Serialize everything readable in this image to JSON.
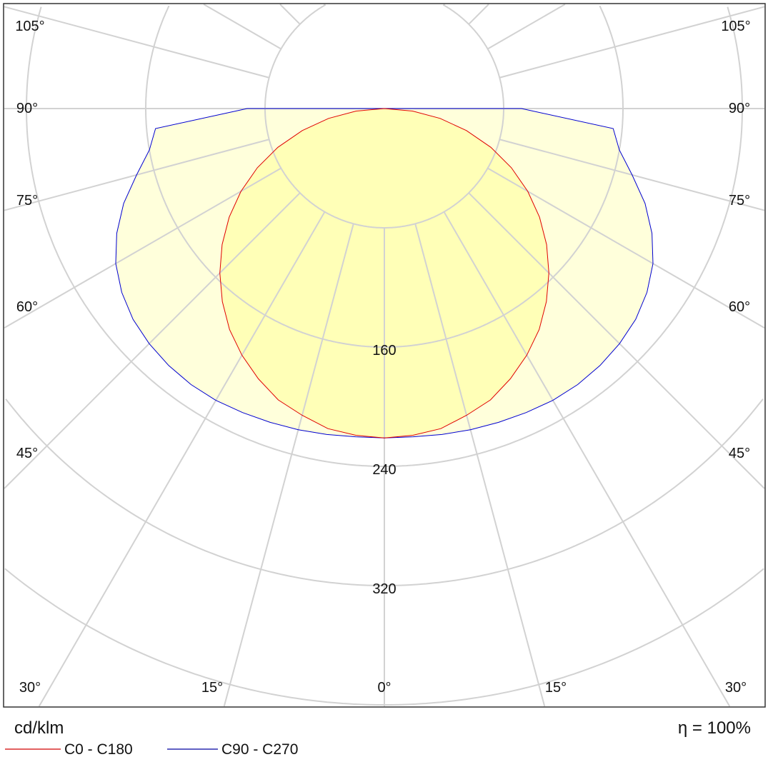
{
  "chart_data": {
    "type": "polar",
    "unit_label": "cd/klm",
    "efficiency_label": "η = 100%",
    "radial_ticks": [
      80,
      160,
      240,
      320,
      400,
      480,
      560,
      640
    ],
    "radial_tick_labels": [
      "160",
      "240",
      "320"
    ],
    "angle_labels": [
      "0°",
      "15°",
      "30°",
      "45°",
      "60°",
      "75°",
      "90°",
      "105°"
    ],
    "grid": true,
    "legend_placement": "bottom-left",
    "angles": [
      0,
      5,
      10,
      15,
      20,
      25,
      30,
      35,
      40,
      45,
      50,
      55,
      60,
      65,
      70,
      75,
      80,
      85,
      90
    ],
    "series": [
      {
        "name": "C0 - C180",
        "color": "#e00000",
        "values": [
          221,
          220,
          218,
          213,
          208,
          200,
          191,
          181,
          169,
          156,
          142,
          127,
          111,
          94,
          76,
          57,
          38,
          19,
          0
        ]
      },
      {
        "name": "C90 - C270",
        "color": "#0000d0",
        "values": [
          221,
          221,
          222,
          223,
          224,
          225,
          226,
          226,
          225,
          223,
          220,
          215,
          208,
          198,
          186,
          172,
          160,
          154,
          92
        ]
      }
    ],
    "fill_color": "#ffff99"
  }
}
